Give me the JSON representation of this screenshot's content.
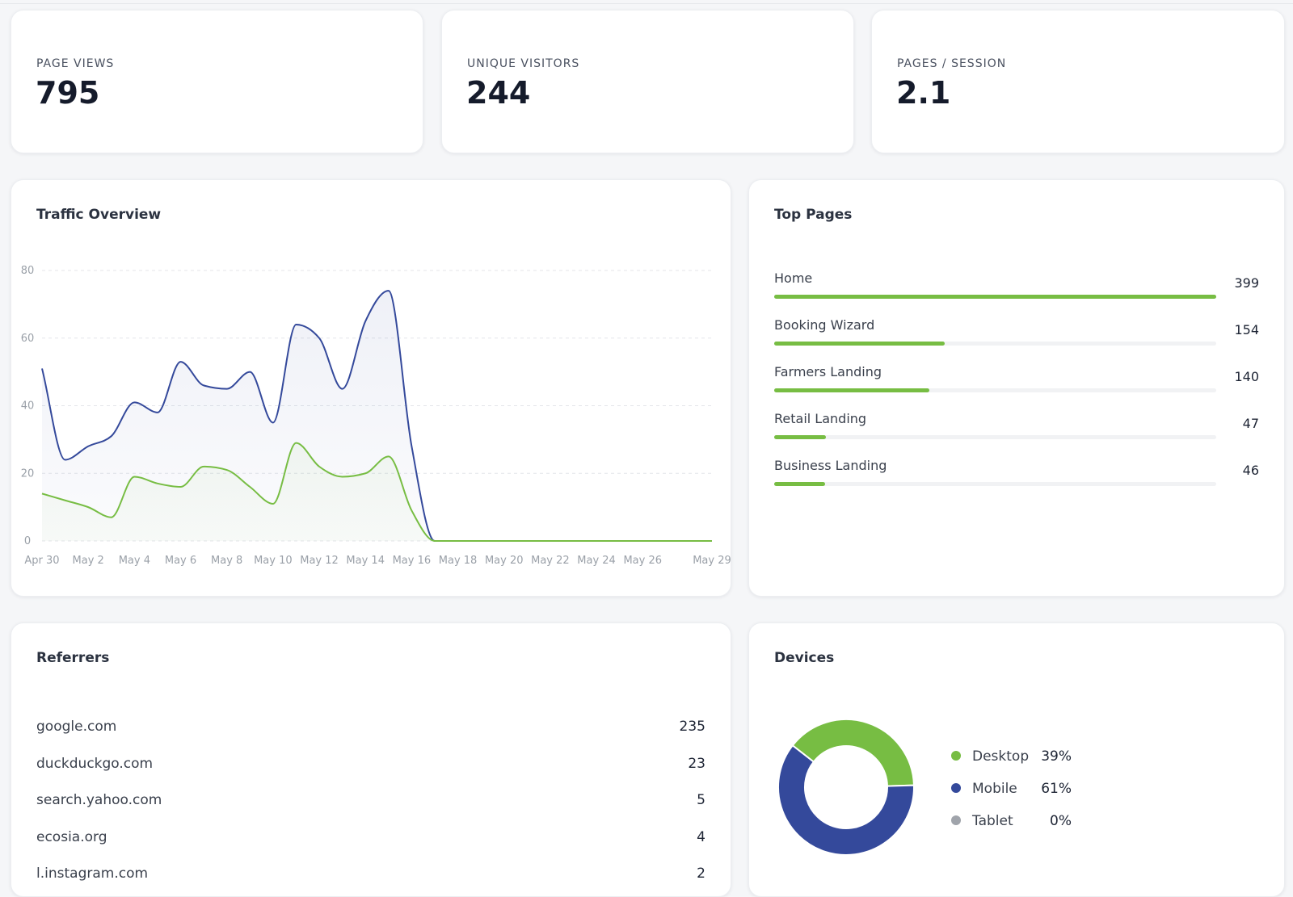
{
  "stats": [
    {
      "label": "PAGE VIEWS",
      "value": 795
    },
    {
      "label": "UNIQUE VISITORS",
      "value": 244
    },
    {
      "label": "PAGES / SESSION",
      "value": 2.1
    }
  ],
  "top_pages": {
    "title": "Top Pages",
    "color": "#77bd43",
    "rows": [
      {
        "label": "Home",
        "value": 399
      },
      {
        "label": "Booking Wizard",
        "value": 154
      },
      {
        "label": "Farmers Landing",
        "value": 140
      },
      {
        "label": "Retail Landing",
        "value": 47
      },
      {
        "label": "Business Landing",
        "value": 46
      }
    ]
  },
  "referrers": {
    "title": "Referrers",
    "rows": [
      {
        "label": "google.com",
        "value": 235
      },
      {
        "label": "duckduckgo.com",
        "value": 23
      },
      {
        "label": "search.yahoo.com",
        "value": 5
      },
      {
        "label": "ecosia.org",
        "value": 4
      },
      {
        "label": "l.instagram.com",
        "value": 2
      }
    ]
  },
  "chart_data": [
    {
      "type": "line",
      "title": "Traffic Overview",
      "categories": [
        "Apr 30",
        null,
        "May 2",
        null,
        "May 4",
        null,
        "May 6",
        null,
        "May 8",
        null,
        "May 10",
        null,
        "May 12",
        null,
        "May 14",
        null,
        "May 16",
        null,
        "May 18",
        null,
        "May 20",
        null,
        "May 22",
        null,
        "May 24",
        null,
        "May 26",
        null,
        null,
        "May 29"
      ],
      "series": [
        {
          "color": "#34499b",
          "values": [
            51,
            24,
            28,
            31,
            41,
            38,
            53,
            46,
            45,
            50,
            35,
            64,
            60,
            45,
            65,
            74,
            28,
            0,
            0,
            0,
            0,
            0,
            0,
            0,
            0,
            0,
            0,
            0,
            0,
            0
          ]
        },
        {
          "color": "#77bd43",
          "values": [
            14,
            12,
            10,
            7,
            19,
            17,
            16,
            22,
            21,
            16,
            11,
            29,
            22,
            19,
            20,
            25,
            9,
            0,
            0,
            0,
            0,
            0,
            0,
            0,
            0,
            0,
            0,
            0,
            0,
            0
          ]
        }
      ],
      "ylim": [
        0,
        80
      ],
      "yticks": [
        0,
        20,
        40,
        60,
        80
      ],
      "grid": true
    },
    {
      "type": "donut",
      "title": "Devices",
      "categories": [
        "Desktop",
        "Mobile",
        "Tablet"
      ],
      "values": [
        39,
        61,
        0
      ],
      "value_labels": [
        "39%",
        "61%",
        "0%"
      ],
      "colors": [
        "#77bd43",
        "#34499b",
        "#a0a4ab"
      ]
    }
  ]
}
